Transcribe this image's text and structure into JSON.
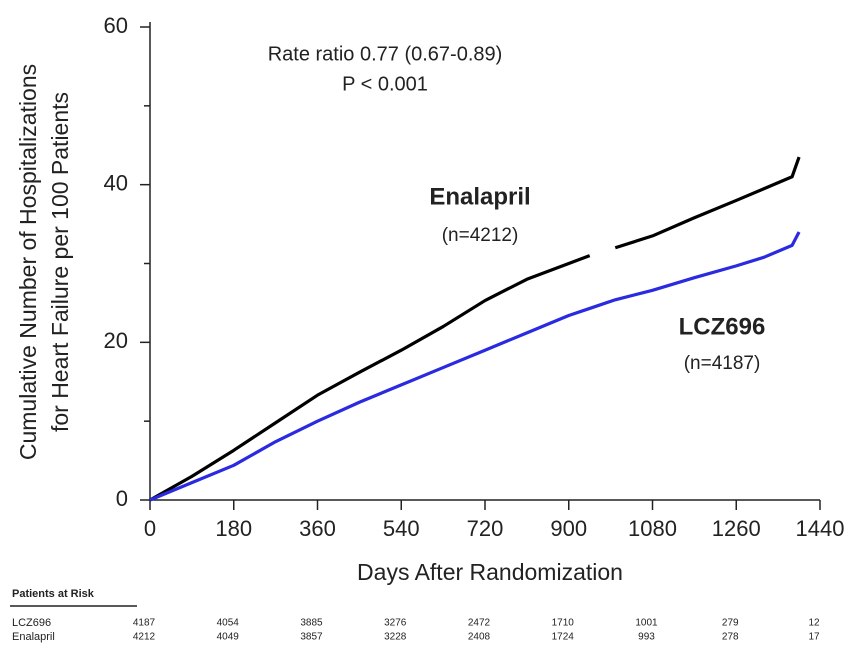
{
  "chart_data": {
    "type": "line",
    "y_label_lines": [
      "Cumulative Number of Hospitalizations",
      "for Heart Failure per 100 Patients"
    ],
    "x_label": "Days After Randomization",
    "annotations": [
      "Rate ratio 0.77  (0.67-0.89)",
      "P < 0.001",
      "(n=4212)",
      "(n=4187)"
    ],
    "x": [
      0,
      90,
      180,
      270,
      360,
      450,
      540,
      630,
      720,
      810,
      900,
      945,
      960,
      1000,
      1080,
      1170,
      1260,
      1320,
      1380,
      1395
    ],
    "series": [
      {
        "name": "Enalapril",
        "color": "#000000",
        "values": [
          0,
          3,
          6.3,
          9.8,
          13.3,
          16.2,
          19,
          22,
          25.3,
          28,
          30,
          31,
          null,
          32,
          33.5,
          35.8,
          38,
          39.5,
          41,
          43.5
        ]
      },
      {
        "name": "LCZ696",
        "color": "#2a2ae0",
        "values": [
          0,
          2.2,
          4.4,
          7.4,
          10,
          12.4,
          14.6,
          16.8,
          19,
          21.2,
          23.4,
          24.3,
          24.6,
          25.4,
          26.6,
          28.2,
          29.7,
          30.8,
          32.3,
          34
        ]
      }
    ],
    "xlim": [
      0,
      1440
    ],
    "xticks": [
      0,
      180,
      360,
      540,
      720,
      900,
      1080,
      1260,
      1440
    ],
    "ylim": [
      0,
      60
    ],
    "yticks": [
      0,
      20,
      40,
      60
    ],
    "yminorticks": [
      10,
      30,
      50
    ],
    "risk_table": {
      "title": "Patients at Risk",
      "days": [
        0,
        180,
        360,
        540,
        720,
        900,
        1080,
        1260,
        1440
      ],
      "rows": [
        {
          "name": "LCZ696",
          "counts": [
            "4187",
            "4054",
            "3885",
            "3276",
            "2472",
            "1710",
            "1001",
            "279",
            "12"
          ]
        },
        {
          "name": "Enalapril",
          "counts": [
            "4212",
            "4049",
            "3857",
            "3228",
            "2408",
            "1724",
            "993",
            "278",
            "17"
          ]
        }
      ]
    }
  }
}
